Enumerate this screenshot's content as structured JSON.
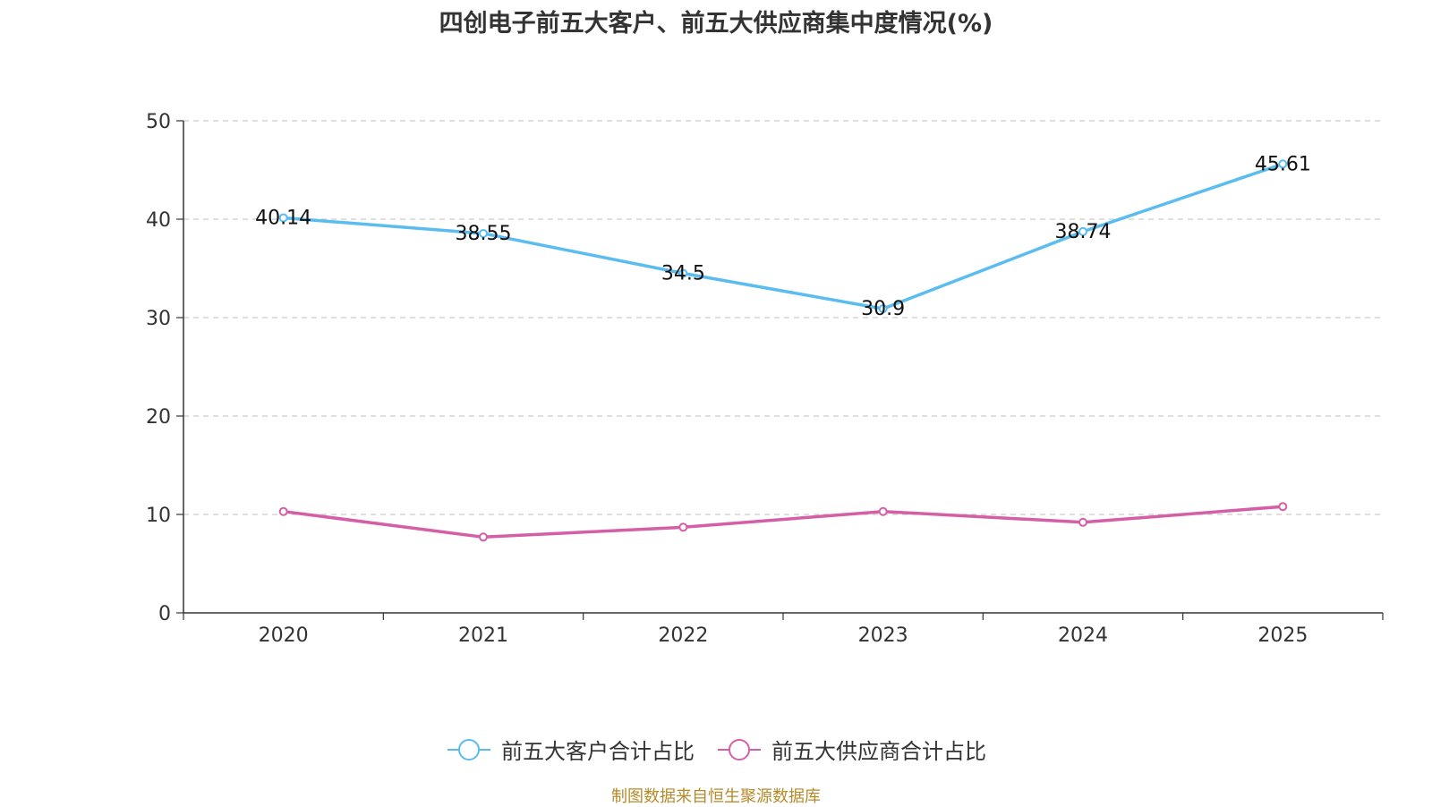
{
  "chart_data": {
    "type": "line",
    "title": "四创电子前五大客户、前五大供应商集中度情况(%)",
    "categories": [
      "2020",
      "2021",
      "2022",
      "2023",
      "2024",
      "2025"
    ],
    "ylim": [
      0,
      50
    ],
    "yticks": [
      0,
      10,
      20,
      30,
      40,
      50
    ],
    "grid": true,
    "legend_position": "bottom",
    "series": [
      {
        "name": "前五大客户合计占比",
        "color": "#5bbcf0",
        "values": [
          40.14,
          38.55,
          34.5,
          30.9,
          38.74,
          45.61
        ],
        "labels": [
          "40.14",
          "38.55",
          "34.5",
          "30.9",
          "38.74",
          "45.61"
        ]
      },
      {
        "name": "前五大供应商合计占比",
        "color": "#d45fa6",
        "values": [
          10.3,
          7.7,
          8.7,
          10.3,
          9.2,
          10.8
        ]
      }
    ],
    "source": "制图数据来自恒生聚源数据库"
  }
}
